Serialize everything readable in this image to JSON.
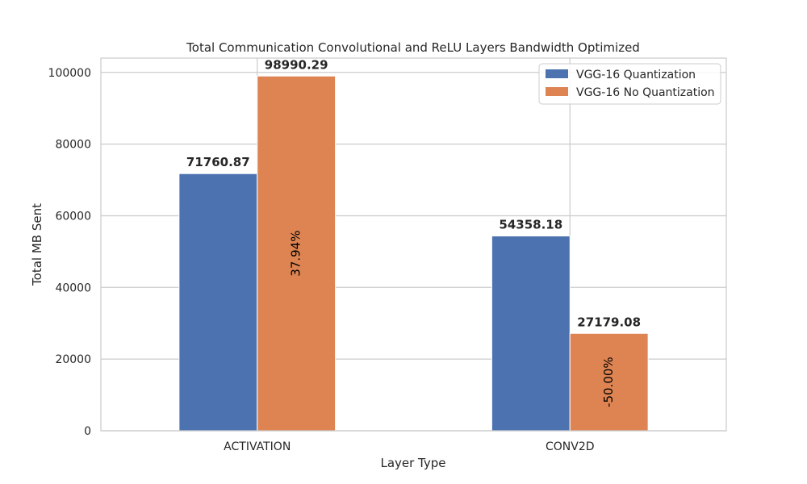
{
  "chart_data": {
    "type": "bar",
    "title": "Total Communication Convolutional and ReLU Layers Bandwidth Optimized",
    "xlabel": "Layer Type",
    "ylabel": "Total MB Sent",
    "categories": [
      "ACTIVATION",
      "CONV2D"
    ],
    "series": [
      {
        "name": "VGG-16 Quantization",
        "values": [
          71760.87,
          54358.18
        ],
        "value_labels": [
          "71760.87",
          "54358.18"
        ],
        "color": "#4c72b0"
      },
      {
        "name": "VGG-16 No Quantization",
        "values": [
          98990.29,
          27179.08
        ],
        "value_labels": [
          "98990.29",
          "27179.08"
        ],
        "color": "#dd8452"
      }
    ],
    "percent_labels": [
      "37.94%",
      "-50.00%"
    ],
    "ylim": [
      0,
      104000
    ],
    "yticks": [
      0,
      20000,
      40000,
      60000,
      80000,
      100000
    ],
    "ytick_labels": [
      "0",
      "20000",
      "40000",
      "60000",
      "80000",
      "100000"
    ],
    "grid": true,
    "legend": "top-right"
  }
}
